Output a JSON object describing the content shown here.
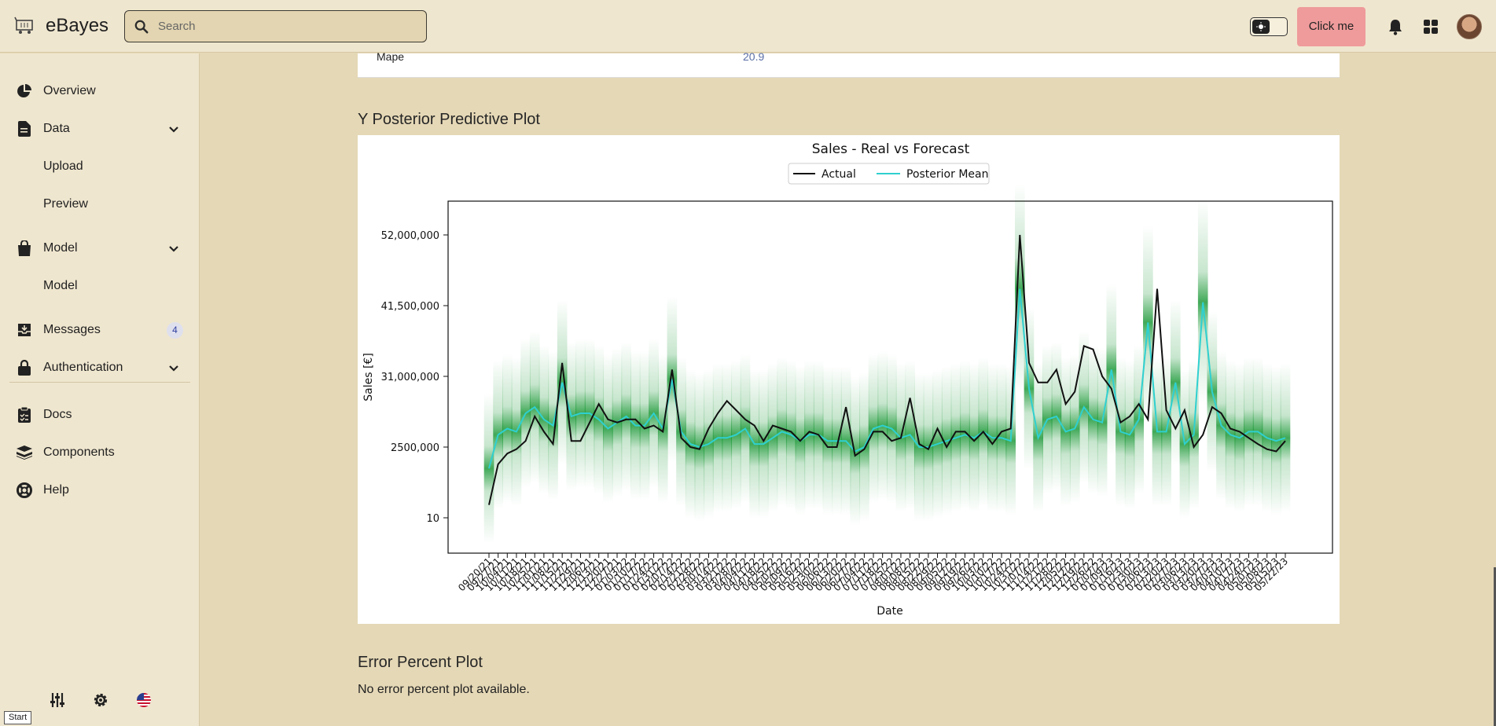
{
  "app": {
    "name": "eBayes"
  },
  "search": {
    "placeholder": "Search"
  },
  "header": {
    "cta_label": "Click me"
  },
  "sidebar": {
    "items": [
      {
        "label": "Overview",
        "icon": "chart-pie-icon"
      },
      {
        "label": "Data",
        "icon": "document-icon",
        "expandable": true
      },
      {
        "label": "Upload",
        "sub": true
      },
      {
        "label": "Preview",
        "sub": true
      },
      {
        "label": "Model",
        "icon": "shopping-bag-icon",
        "expandable": true
      },
      {
        "label": "Model",
        "sub": true
      },
      {
        "label": "Messages",
        "icon": "inbox-icon",
        "badge": "4"
      },
      {
        "label": "Authentication",
        "icon": "lock-icon",
        "expandable": true
      },
      {
        "label": "Docs",
        "icon": "clipboard-icon"
      },
      {
        "label": "Components",
        "icon": "stack-icon"
      },
      {
        "label": "Help",
        "icon": "lifebuoy-icon"
      }
    ],
    "start_tooltip": "Start"
  },
  "metrics": {
    "mape_label": "Mape",
    "mape_value": "20.9"
  },
  "sections": {
    "posterior_title": "Y Posterior Predictive Plot",
    "error_title": "Error Percent Plot",
    "error_message": "No error percent plot available."
  },
  "chart_data": {
    "type": "line",
    "title": "Sales - Real vs Forecast",
    "xlabel": "Date",
    "ylabel": "Sales [€]",
    "yticks": [
      "10",
      "2500,000",
      "31,000,000",
      "41,500,000",
      "52,000,000"
    ],
    "legend": {
      "placement": "top-center",
      "entries": [
        "Actual",
        "Posterior Mean"
      ]
    },
    "series_colors": {
      "Actual": "#111111",
      "Posterior Mean": "#2fd0d0",
      "band": "#1f9a3a"
    },
    "x": [
      "09/20/21",
      "09/27/21",
      "10/04/21",
      "10/11/21",
      "10/18/21",
      "10/25/21",
      "11/01/21",
      "11/08/21",
      "11/15/21",
      "11/22/21",
      "11/29/21",
      "12/06/21",
      "12/13/21",
      "12/20/21",
      "12/27/21",
      "01/03/22",
      "01/10/22",
      "01/17/22",
      "01/24/22",
      "01/31/22",
      "02/07/22",
      "02/14/22",
      "02/21/22",
      "02/28/22",
      "03/07/22",
      "03/14/22",
      "03/21/22",
      "03/28/22",
      "04/04/22",
      "04/11/22",
      "04/18/22",
      "04/25/22",
      "05/02/22",
      "05/09/22",
      "05/16/22",
      "05/23/22",
      "05/30/22",
      "06/06/22",
      "06/13/22",
      "06/20/22",
      "06/27/22",
      "07/04/22",
      "07/11/22",
      "07/18/22",
      "07/25/22",
      "08/01/22",
      "08/08/22",
      "08/15/22",
      "08/22/22",
      "08/29/22",
      "09/05/22",
      "09/12/22",
      "09/19/22",
      "09/26/22",
      "10/03/22",
      "10/10/22",
      "10/17/22",
      "10/24/22",
      "10/31/22",
      "11/07/22",
      "11/14/22",
      "11/21/22",
      "11/28/22",
      "12/05/22",
      "12/12/22",
      "12/19/22",
      "12/26/22",
      "01/02/23",
      "01/09/23",
      "01/16/23",
      "01/23/23",
      "01/30/23",
      "02/06/23",
      "02/13/23",
      "02/20/23",
      "02/27/23",
      "03/06/23",
      "03/13/23",
      "03/20/23",
      "03/27/23",
      "04/03/23",
      "04/10/23",
      "04/17/23",
      "04/24/23",
      "05/01/23",
      "05/08/23",
      "05/15/23",
      "05/22/23"
    ],
    "series": [
      {
        "name": "Actual",
        "values": [
          6.0,
          15.5,
          18.0,
          19.0,
          20.5,
          24.5,
          22.0,
          20.0,
          33.0,
          20.5,
          20.5,
          23.5,
          26.5,
          24.0,
          23.5,
          24.0,
          24.0,
          22.5,
          23.0,
          22.0,
          32.0,
          21.0,
          19.5,
          19.0,
          22.5,
          25.0,
          27.0,
          25.5,
          24.0,
          23.0,
          20.5,
          23.0,
          22.5,
          22.0,
          20.5,
          22.0,
          21.5,
          19.5,
          19.5,
          26.0,
          17.5,
          19.0,
          22.0,
          22.0,
          20.5,
          21.0,
          27.5,
          20.0,
          19.0,
          22.5,
          19.5,
          22.0,
          22.0,
          20.5,
          22.0,
          20.0,
          22.0,
          22.5,
          52.0,
          33.0,
          30.0,
          30.0,
          32.0,
          26.5,
          28.5,
          35.5,
          35.0,
          31.0,
          29.0,
          23.5,
          24.5,
          26.5,
          24.0,
          44.0,
          25.5,
          22.5,
          25.5,
          19.5,
          21.5,
          26.0,
          25.0,
          22.5,
          22.0,
          21.0,
          20.0,
          19.0,
          18.5,
          20.5
        ]
      },
      {
        "name": "Posterior Mean",
        "values": [
          14.5,
          21.5,
          22.5,
          22.0,
          25.0,
          26.0,
          24.0,
          23.0,
          30.0,
          24.5,
          25.0,
          25.0,
          24.0,
          22.5,
          23.5,
          24.5,
          23.0,
          23.0,
          25.0,
          22.5,
          30.5,
          22.0,
          20.0,
          19.5,
          20.0,
          21.0,
          21.0,
          21.5,
          22.5,
          20.0,
          20.0,
          21.0,
          22.0,
          21.5,
          20.5,
          21.5,
          21.5,
          20.5,
          20.5,
          20.5,
          18.5,
          19.5,
          22.5,
          23.0,
          22.5,
          21.0,
          21.5,
          19.5,
          19.5,
          20.0,
          20.5,
          21.0,
          21.5,
          21.0,
          22.0,
          21.0,
          21.0,
          20.5,
          44.0,
          29.0,
          21.0,
          24.0,
          24.5,
          22.0,
          22.5,
          26.0,
          24.0,
          23.5,
          32.0,
          22.0,
          21.5,
          24.0,
          39.0,
          22.0,
          22.0,
          30.0,
          20.0,
          21.5,
          42.0,
          28.5,
          23.0,
          21.5,
          21.0,
          22.0,
          22.0,
          21.0,
          20.5,
          21.0
        ]
      }
    ]
  }
}
